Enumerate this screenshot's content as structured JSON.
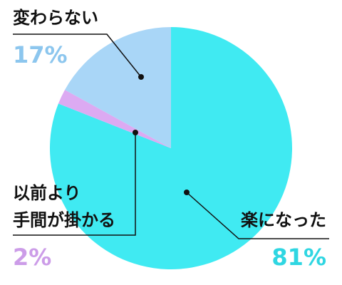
{
  "chart_data": {
    "type": "pie",
    "categories": [
      "楽になった",
      "以前より\n手間が掛かる",
      "変わらない"
    ],
    "values": [
      81,
      2,
      17
    ],
    "value_labels": [
      "81%",
      "2%",
      "17%"
    ],
    "colors": [
      "#40eaf2",
      "#dcaaf2",
      "#a9d6f7"
    ],
    "label_colors": [
      "#2fd6e2",
      "#cc9ce8",
      "#8cc6ee"
    ]
  }
}
